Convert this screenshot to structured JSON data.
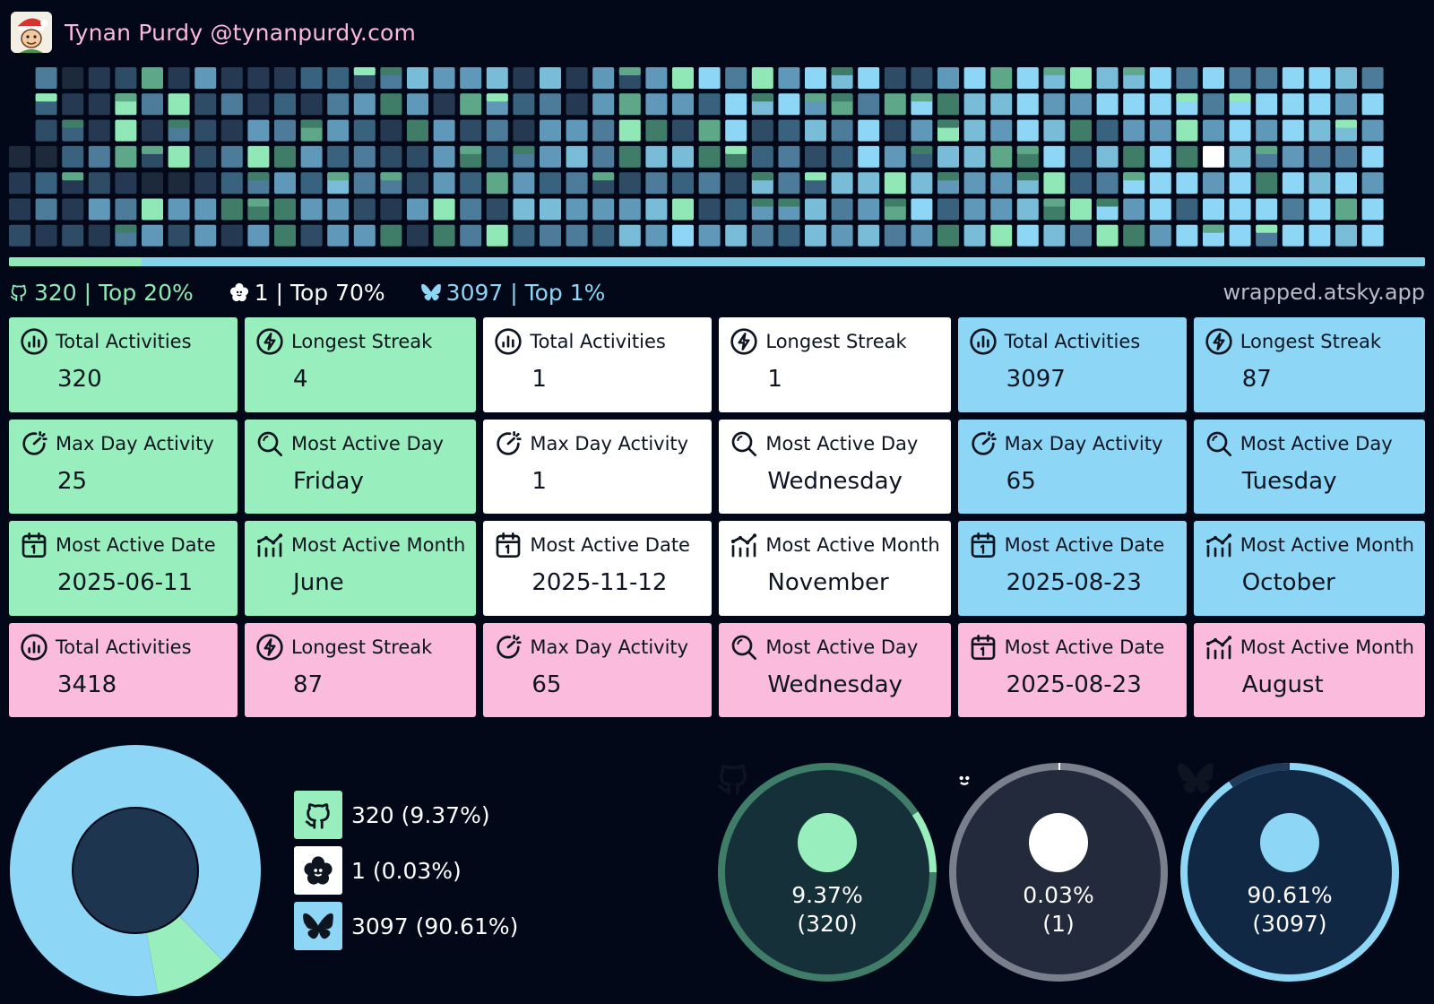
{
  "user": {
    "name": "Tynan Purdy @tynanpurdy.com"
  },
  "colors": {
    "github": "#98eebd",
    "other": "#ffffff",
    "bluesky": "#8dd6f6",
    "total": "#fbbbdd",
    "background": "#030818"
  },
  "progress": {
    "github_fraction": 0.0937,
    "other_fraction": 0.0003,
    "bluesky_fraction": 0.9061
  },
  "summary": {
    "github": "320 | Top 20%",
    "other": "1 | Top 70%",
    "bluesky": "3097 | Top 1%",
    "site": "wrapped.atsky.app"
  },
  "cards": [
    {
      "label": "Total Activities",
      "value": "320",
      "icon": "bar-chart-icon",
      "theme": "green"
    },
    {
      "label": "Longest Streak",
      "value": "4",
      "icon": "lightning-icon",
      "theme": "green"
    },
    {
      "label": "Total Activities",
      "value": "1",
      "icon": "bar-chart-icon",
      "theme": "white"
    },
    {
      "label": "Longest Streak",
      "value": "1",
      "icon": "lightning-icon",
      "theme": "white"
    },
    {
      "label": "Total Activities",
      "value": "3097",
      "icon": "bar-chart-icon",
      "theme": "blue"
    },
    {
      "label": "Longest Streak",
      "value": "87",
      "icon": "lightning-icon",
      "theme": "blue"
    },
    {
      "label": "Max Day Activity",
      "value": "25",
      "icon": "gauge-icon",
      "theme": "green"
    },
    {
      "label": "Most Active Day",
      "value": "Friday",
      "icon": "search-icon",
      "theme": "green"
    },
    {
      "label": "Max Day Activity",
      "value": "1",
      "icon": "gauge-icon",
      "theme": "white"
    },
    {
      "label": "Most Active Day",
      "value": "Wednesday",
      "icon": "search-icon",
      "theme": "white"
    },
    {
      "label": "Max Day Activity",
      "value": "65",
      "icon": "gauge-icon",
      "theme": "blue"
    },
    {
      "label": "Most Active Day",
      "value": "Tuesday",
      "icon": "search-icon",
      "theme": "blue"
    },
    {
      "label": "Most Active Date",
      "value": "2025-06-11",
      "icon": "calendar-icon",
      "theme": "green"
    },
    {
      "label": "Most Active Month",
      "value": "June",
      "icon": "trend-icon",
      "theme": "green"
    },
    {
      "label": "Most Active Date",
      "value": "2025-11-12",
      "icon": "calendar-icon",
      "theme": "white"
    },
    {
      "label": "Most Active Month",
      "value": "November",
      "icon": "trend-icon",
      "theme": "white"
    },
    {
      "label": "Most Active Date",
      "value": "2025-08-23",
      "icon": "calendar-icon",
      "theme": "blue"
    },
    {
      "label": "Most Active Month",
      "value": "October",
      "icon": "trend-icon",
      "theme": "blue"
    },
    {
      "label": "Total Activities",
      "value": "3418",
      "icon": "bar-chart-icon",
      "theme": "pink"
    },
    {
      "label": "Longest Streak",
      "value": "87",
      "icon": "lightning-icon",
      "theme": "pink"
    },
    {
      "label": "Max Day Activity",
      "value": "65",
      "icon": "gauge-icon",
      "theme": "pink"
    },
    {
      "label": "Most Active Day",
      "value": "Wednesday",
      "icon": "search-icon",
      "theme": "pink"
    },
    {
      "label": "Most Active Date",
      "value": "2025-08-23",
      "icon": "calendar-icon",
      "theme": "pink"
    },
    {
      "label": "Most Active Month",
      "value": "August",
      "icon": "trend-icon",
      "theme": "pink"
    }
  ],
  "legend": [
    {
      "text": "320 (9.37%)",
      "icon": "github-icon"
    },
    {
      "text": "1 (0.03%)",
      "icon": "flower-icon"
    },
    {
      "text": "3097 (90.61%)",
      "icon": "butterfly-icon"
    }
  ],
  "rings": [
    {
      "pct": "9.37%",
      "count": "(320)",
      "fraction": 0.0937,
      "icon": "github-icon"
    },
    {
      "pct": "0.03%",
      "count": "(1)",
      "fraction": 0.0003,
      "icon": "flower-icon"
    },
    {
      "pct": "90.61%",
      "count": "(3097)",
      "fraction": 0.9061,
      "icon": "butterfly-icon"
    }
  ],
  "chart_data": [
    {
      "type": "heatmap",
      "title": "",
      "rows": 7,
      "columns": 52,
      "series": [
        "GitHub",
        "Other",
        "Bluesky"
      ]
    },
    {
      "type": "pie",
      "title": "",
      "categories": [
        "GitHub",
        "Other",
        "Bluesky"
      ],
      "values": [
        320,
        1,
        3097
      ],
      "colors": [
        "#98eebd",
        "#ffffff",
        "#8dd6f6"
      ]
    }
  ]
}
